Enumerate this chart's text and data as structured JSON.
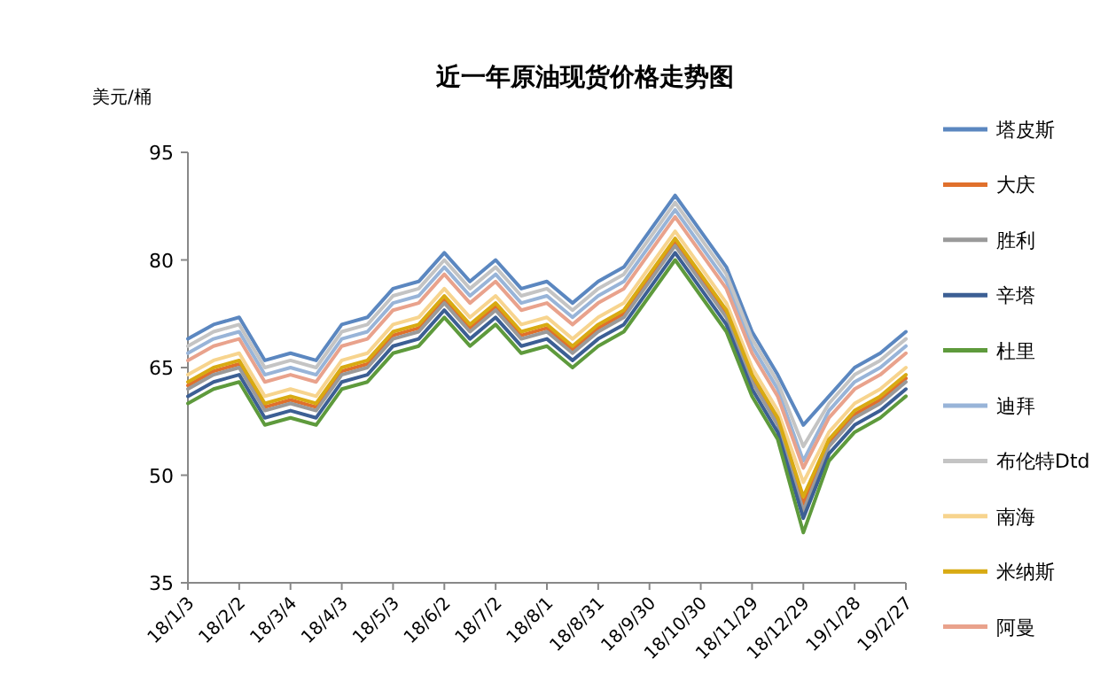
{
  "chart_data": {
    "type": "line",
    "title": "近一年原油现货价格走势图",
    "ylabel": "美元/桶",
    "categories": [
      "18/1/3",
      null,
      "18/2/2",
      null,
      "18/3/4",
      null,
      "18/4/3",
      null,
      "18/5/3",
      null,
      "18/6/2",
      null,
      "18/7/2",
      null,
      "18/8/1",
      null,
      "18/8/31",
      null,
      "18/9/30",
      null,
      "18/10/30",
      null,
      "18/11/29",
      null,
      "18/12/29",
      null,
      "19/1/28",
      null,
      "19/2/27"
    ],
    "ylim": [
      35,
      95
    ],
    "yticks": [
      35,
      50,
      65,
      80,
      95
    ],
    "grid": false,
    "legend": "right",
    "marker": "none",
    "line_style": "solid",
    "series": [
      {
        "name": "塔皮斯",
        "color": "#5b87c0",
        "values": [
          69,
          71,
          72,
          66,
          67,
          66,
          71,
          72,
          76,
          77,
          81,
          77,
          80,
          76,
          77,
          74,
          77,
          79,
          84,
          89,
          84,
          79,
          70,
          64,
          57,
          61,
          65,
          67,
          70
        ]
      },
      {
        "name": "大庆",
        "color": "#e0702c",
        "values": [
          62.5,
          64.5,
          65.5,
          59.5,
          60.5,
          59.5,
          64.5,
          65.5,
          69.5,
          70.5,
          74.5,
          70.5,
          73.5,
          69.5,
          70.5,
          67.5,
          70.5,
          72.5,
          77.5,
          82.5,
          77.5,
          72.5,
          63.5,
          57.5,
          46,
          54.5,
          58.5,
          60.5,
          63.5
        ]
      },
      {
        "name": "胜利",
        "color": "#9a9a9a",
        "values": [
          62,
          64,
          65,
          59,
          60,
          59,
          64,
          65,
          69,
          70,
          74,
          70,
          73,
          69,
          70,
          67,
          70,
          72,
          77,
          82,
          77,
          72,
          63,
          57,
          45,
          54,
          58,
          60,
          63
        ]
      },
      {
        "name": "辛塔",
        "color": "#3c5f94",
        "values": [
          61,
          63,
          64,
          58,
          59,
          58,
          63,
          64,
          68,
          69,
          73,
          69,
          72,
          68,
          69,
          66,
          69,
          71,
          76,
          81,
          76,
          71,
          62,
          56,
          44,
          53,
          57,
          59,
          62
        ]
      },
      {
        "name": "杜里",
        "color": "#5e9a3c",
        "values": [
          60,
          62,
          63,
          57,
          58,
          57,
          62,
          63,
          67,
          68,
          72,
          68,
          71,
          67,
          68,
          65,
          68,
          70,
          75,
          80,
          75,
          70,
          61,
          55,
          42,
          52,
          56,
          58,
          61
        ]
      },
      {
        "name": "迪拜",
        "color": "#98b4d8",
        "values": [
          67,
          69,
          70,
          64,
          65,
          64,
          69,
          70,
          74,
          75,
          79,
          75,
          78,
          74,
          75,
          72,
          75,
          77,
          82,
          87,
          82,
          77,
          68,
          62,
          52,
          59,
          63,
          65,
          68
        ]
      },
      {
        "name": "布伦特Dtd",
        "color": "#c4c4c4",
        "values": [
          68,
          70,
          71,
          65,
          66,
          65,
          70,
          71,
          75,
          76,
          80,
          76,
          79,
          75,
          76,
          73,
          76,
          78,
          83,
          88,
          83,
          78,
          69,
          63,
          54,
          60,
          64,
          66,
          69
        ]
      },
      {
        "name": "南海",
        "color": "#f7d48e",
        "values": [
          64,
          66,
          67,
          61,
          62,
          61,
          66,
          67,
          71,
          72,
          76,
          72,
          75,
          71,
          72,
          69,
          72,
          74,
          79,
          84,
          79,
          74,
          65,
          59,
          49,
          56,
          60,
          62,
          65
        ]
      },
      {
        "name": "米纳斯",
        "color": "#d8aa12",
        "values": [
          63,
          65,
          66,
          60,
          61,
          60,
          65,
          66,
          70,
          71,
          75,
          71,
          74,
          70,
          71,
          68,
          71,
          73,
          78,
          83,
          78,
          73,
          64,
          58,
          47,
          55,
          59,
          61,
          64
        ]
      },
      {
        "name": "阿曼",
        "color": "#e9a28c",
        "values": [
          66,
          68,
          69,
          63,
          64,
          63,
          68,
          69,
          73,
          74,
          78,
          74,
          77,
          73,
          74,
          71,
          74,
          76,
          81,
          86,
          81,
          76,
          67,
          61,
          51,
          58,
          62,
          64,
          67
        ]
      }
    ]
  }
}
